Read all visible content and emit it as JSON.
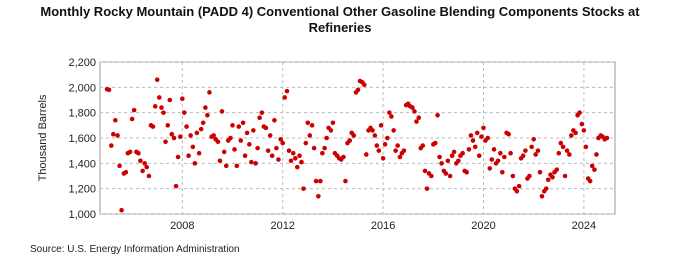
{
  "chart_data": {
    "type": "scatter",
    "title": "Monthly Rocky Mountain (PADD 4) Conventional Other Gasoline Blending Components Stocks at Refineries",
    "y_label": "Thousand Barrels",
    "source": "Source: U.S. Energy Information Administration",
    "color": "#cc0000",
    "grid": true,
    "xlim": [
      2004.72,
      2025.24
    ],
    "xticks": [
      2008,
      2012,
      2016,
      2020,
      2024
    ],
    "ylim": [
      1000,
      2200
    ],
    "yticks": [
      {
        "value": 1000,
        "label": "1,000"
      },
      {
        "value": 1200,
        "label": "1,200"
      },
      {
        "value": 1400,
        "label": "1,400"
      },
      {
        "value": 1600,
        "label": "1,600"
      },
      {
        "value": 1800,
        "label": "1,800"
      },
      {
        "value": 2000,
        "label": "2,000"
      },
      {
        "value": 2200,
        "label": "2,200"
      }
    ],
    "x": [
      2005.0,
      2005.08,
      2005.17,
      2005.25,
      2005.33,
      2005.42,
      2005.5,
      2005.58,
      2005.67,
      2005.75,
      2005.83,
      2005.92,
      2006.0,
      2006.08,
      2006.17,
      2006.25,
      2006.33,
      2006.42,
      2006.5,
      2006.58,
      2006.67,
      2006.75,
      2006.83,
      2006.92,
      2007.0,
      2007.08,
      2007.17,
      2007.25,
      2007.33,
      2007.42,
      2007.5,
      2007.58,
      2007.67,
      2007.75,
      2007.83,
      2007.92,
      2008.0,
      2008.08,
      2008.17,
      2008.25,
      2008.33,
      2008.42,
      2008.5,
      2008.58,
      2008.67,
      2008.75,
      2008.83,
      2008.92,
      2009.0,
      2009.08,
      2009.17,
      2009.25,
      2009.33,
      2009.42,
      2009.5,
      2009.58,
      2009.67,
      2009.75,
      2009.83,
      2009.92,
      2010.0,
      2010.08,
      2010.17,
      2010.25,
      2010.33,
      2010.42,
      2010.5,
      2010.58,
      2010.67,
      2010.75,
      2010.83,
      2010.92,
      2011.0,
      2011.08,
      2011.17,
      2011.25,
      2011.33,
      2011.42,
      2011.5,
      2011.58,
      2011.67,
      2011.75,
      2011.83,
      2011.92,
      2012.0,
      2012.08,
      2012.17,
      2012.25,
      2012.33,
      2012.42,
      2012.5,
      2012.58,
      2012.67,
      2012.75,
      2012.83,
      2012.92,
      2013.0,
      2013.08,
      2013.17,
      2013.25,
      2013.33,
      2013.42,
      2013.5,
      2013.58,
      2013.67,
      2013.75,
      2013.83,
      2013.92,
      2014.0,
      2014.08,
      2014.17,
      2014.25,
      2014.33,
      2014.42,
      2014.5,
      2014.58,
      2014.67,
      2014.75,
      2014.83,
      2014.92,
      2015.0,
      2015.08,
      2015.17,
      2015.25,
      2015.33,
      2015.42,
      2015.5,
      2015.58,
      2015.67,
      2015.75,
      2015.83,
      2015.92,
      2016.0,
      2016.08,
      2016.17,
      2016.25,
      2016.33,
      2016.42,
      2016.5,
      2016.58,
      2016.67,
      2016.75,
      2016.83,
      2016.92,
      2017.0,
      2017.08,
      2017.17,
      2017.25,
      2017.33,
      2017.42,
      2017.5,
      2017.58,
      2017.67,
      2017.75,
      2017.83,
      2017.92,
      2018.0,
      2018.08,
      2018.17,
      2018.25,
      2018.33,
      2018.42,
      2018.5,
      2018.58,
      2018.67,
      2018.75,
      2018.83,
      2018.92,
      2019.0,
      2019.08,
      2019.17,
      2019.25,
      2019.33,
      2019.42,
      2019.5,
      2019.58,
      2019.67,
      2019.75,
      2019.83,
      2019.92,
      2020.0,
      2020.08,
      2020.17,
      2020.25,
      2020.33,
      2020.42,
      2020.5,
      2020.58,
      2020.67,
      2020.75,
      2020.83,
      2020.92,
      2021.0,
      2021.08,
      2021.17,
      2021.25,
      2021.33,
      2021.42,
      2021.5,
      2021.58,
      2021.67,
      2021.75,
      2021.83,
      2021.92,
      2022.0,
      2022.08,
      2022.17,
      2022.25,
      2022.33,
      2022.42,
      2022.5,
      2022.58,
      2022.67,
      2022.75,
      2022.83,
      2022.92,
      2023.0,
      2023.08,
      2023.17,
      2023.25,
      2023.33,
      2023.42,
      2023.5,
      2023.58,
      2023.67,
      2023.75,
      2023.83,
      2023.92,
      2024.0,
      2024.08,
      2024.17,
      2024.25,
      2024.33,
      2024.42,
      2024.5,
      2024.58,
      2024.67,
      2024.75,
      2024.83,
      2024.92
    ],
    "values": [
      1985,
      1980,
      1540,
      1630,
      1740,
      1620,
      1380,
      1030,
      1320,
      1330,
      1480,
      1490,
      1750,
      1820,
      1490,
      1480,
      1420,
      1340,
      1400,
      1370,
      1300,
      1700,
      1690,
      1850,
      2060,
      1920,
      1840,
      1800,
      1570,
      1700,
      1900,
      1630,
      1600,
      1220,
      1450,
      1610,
      1910,
      1800,
      1690,
      1460,
      1620,
      1530,
      1400,
      1640,
      1480,
      1670,
      1720,
      1840,
      1780,
      1960,
      1610,
      1620,
      1590,
      1570,
      1420,
      1810,
      1490,
      1380,
      1580,
      1600,
      1700,
      1510,
      1380,
      1690,
      1580,
      1720,
      1460,
      1640,
      1550,
      1410,
      1660,
      1400,
      1520,
      1760,
      1800,
      1690,
      1680,
      1500,
      1620,
      1460,
      1740,
      1520,
      1430,
      1590,
      1560,
      1920,
      1970,
      1500,
      1420,
      1480,
      1440,
      1370,
      1460,
      1410,
      1200,
      1560,
      1720,
      1620,
      1700,
      1520,
      1260,
      1140,
      1260,
      1480,
      1520,
      1600,
      1680,
      1660,
      1720,
      1480,
      1460,
      1440,
      1430,
      1450,
      1260,
      1560,
      1580,
      1640,
      1620,
      1960,
      1980,
      2050,
      2040,
      2020,
      1470,
      1660,
      1680,
      1660,
      1620,
      1540,
      1500,
      1700,
      1440,
      1550,
      1600,
      1800,
      1770,
      1660,
      1500,
      1540,
      1450,
      1480,
      1500,
      1860,
      1870,
      1850,
      1840,
      1810,
      1730,
      1760,
      1520,
      1540,
      1340,
      1200,
      1320,
      1300,
      1550,
      1560,
      1780,
      1450,
      1400,
      1340,
      1320,
      1420,
      1300,
      1460,
      1490,
      1400,
      1420,
      1460,
      1480,
      1340,
      1330,
      1510,
      1620,
      1580,
      1530,
      1640,
      1460,
      1610,
      1680,
      1580,
      1600,
      1360,
      1430,
      1510,
      1400,
      1420,
      1480,
      1330,
      1450,
      1640,
      1630,
      1480,
      1300,
      1200,
      1180,
      1220,
      1440,
      1460,
      1500,
      1280,
      1300,
      1530,
      1590,
      1470,
      1500,
      1330,
      1140,
      1180,
      1200,
      1270,
      1310,
      1290,
      1330,
      1350,
      1480,
      1560,
      1530,
      1300,
      1500,
      1470,
      1620,
      1660,
      1640,
      1780,
      1800,
      1710,
      1660,
      1530,
      1280,
      1260,
      1380,
      1350,
      1470,
      1600,
      1620,
      1610,
      1590,
      1600
    ]
  }
}
